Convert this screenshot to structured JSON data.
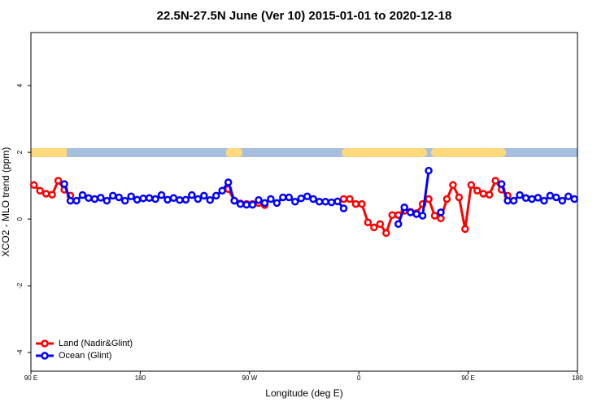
{
  "chart_data": {
    "type": "line",
    "title": "22.5N-27.5N June (Ver 10)   2015-01-01 to 2020-12-18",
    "xlabel": "Longitude (deg E)",
    "ylabel": "XCO2 - MLO trend (ppm)",
    "x": [
      92.5,
      97.5,
      102.5,
      107.5,
      112.5,
      117.5,
      122.5,
      127.5,
      132.5,
      137.5,
      142.5,
      147.5,
      152.5,
      157.5,
      162.5,
      167.5,
      172.5,
      177.5,
      182.5,
      187.5,
      192.5,
      197.5,
      202.5,
      207.5,
      212.5,
      217.5,
      222.5,
      227.5,
      232.5,
      237.5,
      242.5,
      247.5,
      252.5,
      257.5,
      262.5,
      267.5,
      272.5,
      277.5,
      282.5,
      287.5,
      292.5,
      297.5,
      302.5,
      307.5,
      312.5,
      317.5,
      322.5,
      327.5,
      332.5,
      337.5,
      342.5,
      347.5,
      352.5,
      357.5,
      362.5,
      367.5,
      372.5,
      377.5,
      382.5,
      387.5,
      392.5,
      397.5,
      402.5,
      407.5,
      412.5,
      417.5,
      422.5,
      427.5,
      432.5,
      437.5,
      442.5,
      447.5,
      452.5,
      457.5,
      462.5,
      467.5,
      472.5,
      477.5,
      482.5,
      487.5,
      492.5,
      497.5,
      502.5,
      507.5,
      512.5,
      517.5,
      522.5,
      527.5,
      532.5,
      537.5
    ],
    "series": [
      {
        "name": "Land (Nadir&Glint)",
        "color": "#ff0000",
        "values": [
          1.02,
          0.85,
          0.76,
          0.73,
          1.15,
          0.88,
          0.7,
          null,
          null,
          null,
          null,
          null,
          null,
          null,
          null,
          null,
          null,
          null,
          null,
          null,
          null,
          null,
          null,
          null,
          null,
          null,
          null,
          null,
          null,
          null,
          null,
          null,
          0.9,
          0.55,
          0.47,
          0.45,
          0.45,
          0.48,
          0.42,
          null,
          null,
          null,
          null,
          null,
          null,
          null,
          null,
          null,
          null,
          null,
          null,
          0.6,
          0.6,
          0.45,
          0.45,
          -0.1,
          -0.25,
          -0.15,
          -0.42,
          0.12,
          0.12,
          0.25,
          0.22,
          0.18,
          0.45,
          0.6,
          0.1,
          0.02,
          0.6,
          1.02,
          0.65,
          -0.3,
          1.02,
          0.85,
          0.76,
          0.73,
          1.15,
          0.88,
          0.7,
          null,
          null,
          null,
          null,
          null,
          null,
          null,
          null,
          null,
          null,
          null
        ]
      },
      {
        "name": "Ocean (Glint)",
        "color": "#0000ff",
        "values": [
          null,
          null,
          null,
          null,
          null,
          1.05,
          0.55,
          0.55,
          0.72,
          0.63,
          0.6,
          0.64,
          0.55,
          0.7,
          0.65,
          0.55,
          0.68,
          0.58,
          0.62,
          0.63,
          0.6,
          0.72,
          0.58,
          0.63,
          0.57,
          0.58,
          0.72,
          0.6,
          0.7,
          0.57,
          0.7,
          0.85,
          1.1,
          0.55,
          0.45,
          0.43,
          0.43,
          0.57,
          0.48,
          0.6,
          0.48,
          0.65,
          0.65,
          0.52,
          0.62,
          0.68,
          0.6,
          0.52,
          0.52,
          0.5,
          0.53,
          0.32,
          null,
          null,
          null,
          null,
          null,
          null,
          null,
          null,
          -0.15,
          0.35,
          0.2,
          0.15,
          0.1,
          1.45,
          null,
          0.2,
          null,
          null,
          null,
          null,
          null,
          null,
          null,
          null,
          null,
          1.05,
          0.55,
          0.55,
          0.72,
          0.63,
          0.6,
          0.64,
          0.55,
          0.7,
          0.65,
          0.55,
          0.68,
          0.6
        ]
      }
    ],
    "xlim": [
      90,
      540
    ],
    "xticks": [
      {
        "value": 90,
        "label": "90 E"
      },
      180,
      {
        "value": 270,
        "label": "90 W"
      },
      {
        "value": 360,
        "label": "0"
      },
      {
        "value": 450,
        "label": "90 E"
      },
      {
        "value": 540,
        "label": "180"
      }
    ],
    "ylim": [
      -4.56,
      5.59
    ],
    "yticks": [
      -4,
      -2,
      0,
      2,
      4
    ],
    "legend": "bottomleft"
  }
}
